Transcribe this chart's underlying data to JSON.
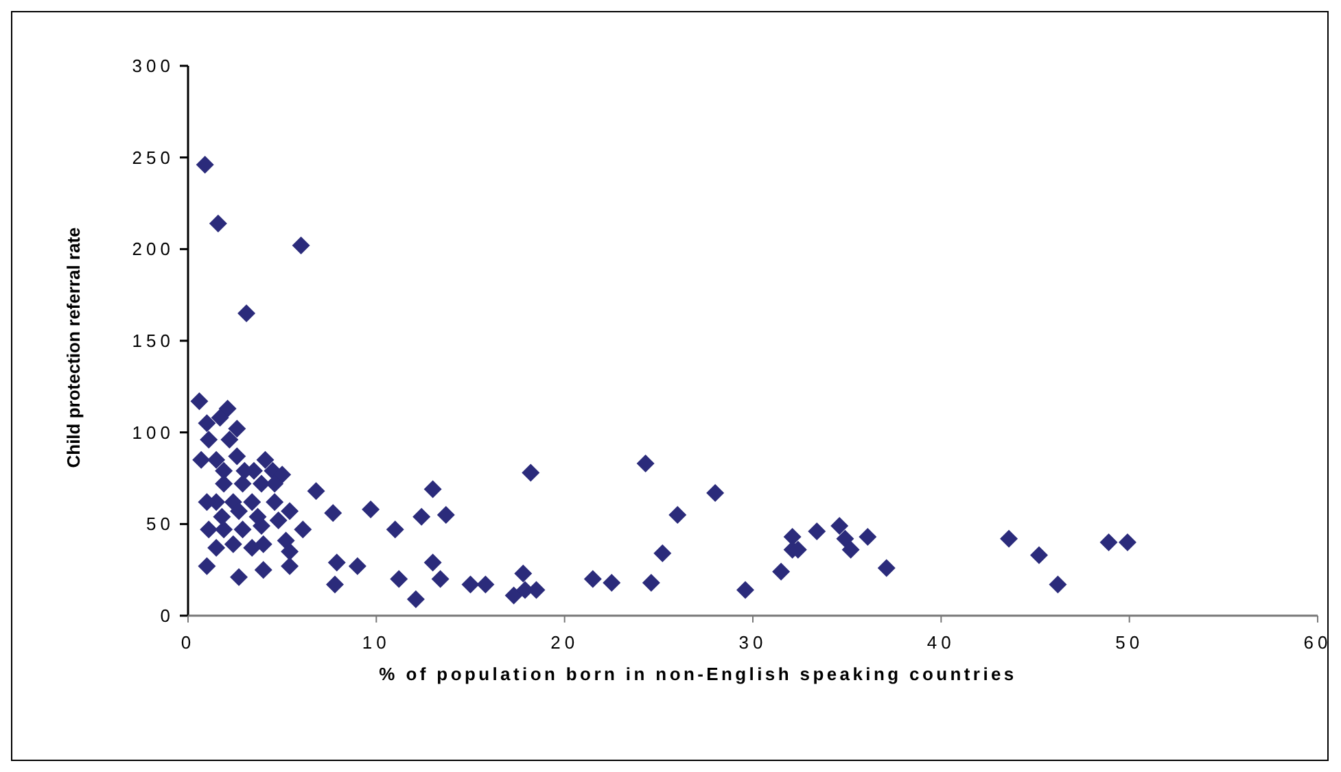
{
  "chart_data": {
    "type": "scatter",
    "xlabel": "% of population born in non-English speaking countries",
    "ylabel": "Child protection referral rate",
    "xlim": [
      0,
      60
    ],
    "ylim": [
      0,
      300
    ],
    "xticks": [
      0,
      10,
      20,
      30,
      40,
      50,
      60
    ],
    "yticks": [
      0,
      50,
      100,
      150,
      200,
      250,
      300
    ],
    "grid": false,
    "marker": "diamond",
    "series": [
      {
        "color": "#2b2b7b",
        "x": [
          0.9,
          1.6,
          6.0,
          3.1,
          0.6,
          2.1,
          1.0,
          1.7,
          2.6,
          1.1,
          2.2,
          0.7,
          1.5,
          2.6,
          4.1,
          4.5,
          5.0,
          3.5,
          1.9,
          2.9,
          3.9,
          1.5,
          2.4,
          3.4,
          4.6,
          5.4,
          1.1,
          1.9,
          2.9,
          3.9,
          5.2,
          6.1,
          1.5,
          2.4,
          3.4,
          4.0,
          5.4,
          1.0,
          2.7,
          4.0,
          5.4,
          4.6,
          2.7,
          1.8,
          1.0,
          3.7,
          4.8,
          1.9,
          3.0,
          6.8,
          7.7,
          7.8,
          7.9,
          9.0,
          9.7,
          11.0,
          11.2,
          12.1,
          12.4,
          13.0,
          13.0,
          13.4,
          13.7,
          15.0,
          15.8,
          17.3,
          17.8,
          17.9,
          18.2,
          18.5,
          21.5,
          22.5,
          24.3,
          24.6,
          25.2,
          26.0,
          28.0,
          29.6,
          31.5,
          32.1,
          32.1,
          32.4,
          33.4,
          34.6,
          34.9,
          35.2,
          36.1,
          37.1,
          43.6,
          45.2,
          46.2,
          48.9,
          49.9
        ],
        "values": [
          246,
          214,
          202,
          165,
          117,
          113,
          105,
          108,
          102,
          96,
          96,
          85,
          85,
          87,
          85,
          79,
          77,
          79,
          72,
          72,
          72,
          62,
          62,
          62,
          62,
          57,
          47,
          47,
          47,
          49,
          41,
          47,
          37,
          39,
          37,
          39,
          35,
          27,
          21,
          25,
          27,
          72,
          57,
          54,
          62,
          54,
          52,
          79,
          79,
          68,
          56,
          17,
          29,
          27,
          58,
          47,
          20,
          9,
          54,
          69,
          29,
          20,
          55,
          17,
          17,
          11,
          23,
          14,
          78,
          14,
          20,
          18,
          83,
          18,
          34,
          55,
          67,
          14,
          24,
          43,
          36,
          36,
          46,
          49,
          42,
          36,
          43,
          26,
          42,
          33,
          17,
          40,
          40
        ]
      }
    ]
  }
}
